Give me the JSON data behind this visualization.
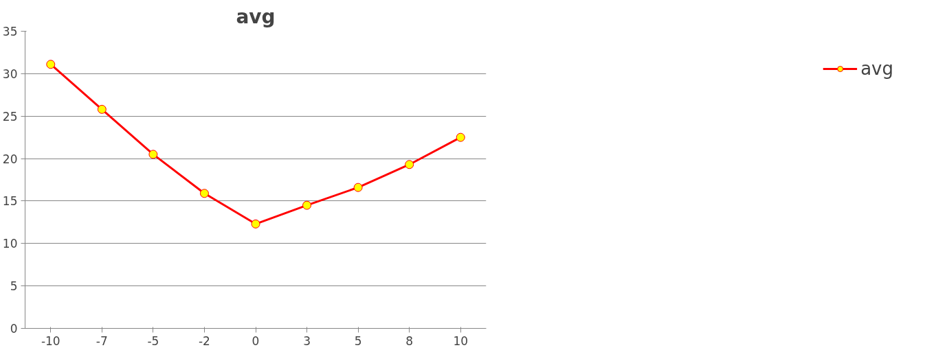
{
  "chart_data": {
    "type": "line",
    "title": "avg",
    "categories": [
      "-10",
      "-7",
      "-5",
      "-2",
      "0",
      "3",
      "5",
      "8",
      "10"
    ],
    "series": [
      {
        "name": "avg",
        "color": "#ff0000",
        "values": [
          31.1,
          25.8,
          20.5,
          15.9,
          12.3,
          14.5,
          16.6,
          19.3,
          22.5
        ]
      }
    ],
    "ylim": [
      0,
      35
    ],
    "yticks": [
      0,
      5,
      10,
      15,
      20,
      25,
      30,
      35
    ],
    "grid": "y",
    "legend": "right",
    "marker": "circle",
    "line_style": "solid"
  }
}
